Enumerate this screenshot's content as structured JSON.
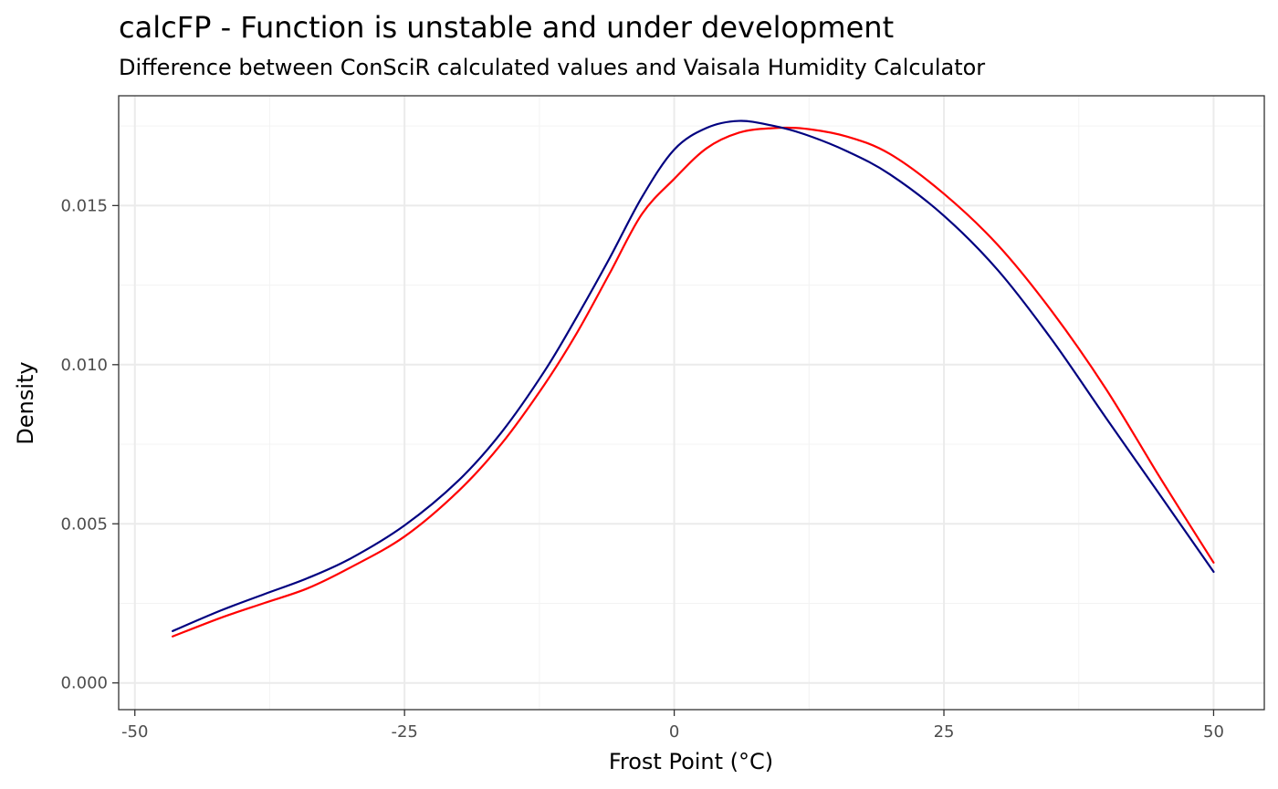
{
  "chart_data": {
    "type": "line",
    "title": "calcFP - Function is unstable and under development",
    "subtitle": "Difference between ConSciR calculated values and Vaisala Humidity Calculator",
    "xlabel": "Frost Point (°C)",
    "ylabel": "Density",
    "xlim": [
      -51.5,
      54.7
    ],
    "ylim": [
      -0.00084,
      0.01845
    ],
    "x_ticks": [
      -50,
      -25,
      0,
      25,
      50
    ],
    "x_tick_labels": [
      "-50",
      "-25",
      "0",
      "25",
      "50"
    ],
    "y_ticks": [
      0.0,
      0.005,
      0.01,
      0.015
    ],
    "y_tick_labels": [
      "0.000",
      "0.005",
      "0.010",
      "0.015"
    ],
    "grid": true,
    "legend": "none",
    "series": [
      {
        "color": "#000080",
        "x": [
          -46.5,
          -42,
          -38,
          -34,
          -30,
          -25,
          -20,
          -16,
          -12,
          -9,
          -6,
          -3,
          0,
          3,
          6,
          9,
          12,
          16,
          20,
          25,
          30,
          35,
          40,
          45,
          50
        ],
        "y": [
          0.00163,
          0.00228,
          0.00279,
          0.00329,
          0.00391,
          0.00495,
          0.00636,
          0.00788,
          0.00981,
          0.01152,
          0.01334,
          0.01526,
          0.01676,
          0.01744,
          0.01766,
          0.01752,
          0.01725,
          0.01671,
          0.01598,
          0.01468,
          0.01297,
          0.01079,
          0.00834,
          0.00592,
          0.00349
        ]
      },
      {
        "color": "#ff0000",
        "x": [
          -46.5,
          -42,
          -38,
          -34,
          -30,
          -25,
          -20,
          -16,
          -12,
          -9,
          -6,
          -3,
          0,
          3,
          6,
          9,
          12,
          16,
          20,
          25,
          30,
          35,
          40,
          45,
          50
        ],
        "y": [
          0.00146,
          0.00205,
          0.00251,
          0.00297,
          0.00363,
          0.0046,
          0.00603,
          0.00752,
          0.00939,
          0.01101,
          0.01286,
          0.01473,
          0.01584,
          0.0168,
          0.01729,
          0.01743,
          0.01742,
          0.01717,
          0.01662,
          0.01537,
          0.01376,
          0.01168,
          0.00925,
          0.00647,
          0.00378
        ]
      }
    ]
  }
}
